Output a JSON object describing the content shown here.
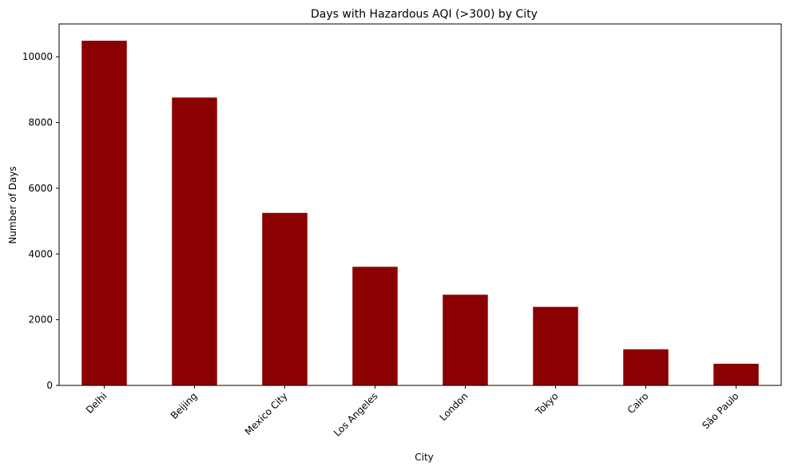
{
  "colors": {
    "bar": "#8b0000",
    "axis": "#000000",
    "background": "#ffffff"
  },
  "chart_data": {
    "type": "bar",
    "title": "Days with Hazardous AQI (>300) by City",
    "xlabel": "City",
    "ylabel": "Number of Days",
    "categories": [
      "Delhi",
      "Beijing",
      "Mexico City",
      "Los Angeles",
      "London",
      "Tokyo",
      "Cairo",
      "São Paulo"
    ],
    "values": [
      10490,
      8760,
      5250,
      3610,
      2760,
      2390,
      1100,
      660
    ],
    "ylim": [
      0,
      11000
    ],
    "yticks": [
      0,
      2000,
      4000,
      6000,
      8000,
      10000
    ],
    "ytick_labels": [
      "0",
      "2000",
      "4000",
      "6000",
      "8000",
      "10000"
    ],
    "grid": false,
    "legend": "none",
    "xtick_rotation": 45
  }
}
